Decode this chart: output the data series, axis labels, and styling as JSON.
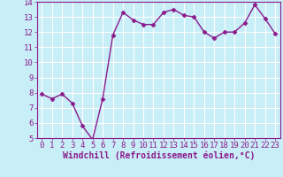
{
  "x": [
    0,
    1,
    2,
    3,
    4,
    5,
    6,
    7,
    8,
    9,
    10,
    11,
    12,
    13,
    14,
    15,
    16,
    17,
    18,
    19,
    20,
    21,
    22,
    23
  ],
  "y": [
    7.9,
    7.6,
    7.9,
    7.3,
    5.8,
    4.9,
    7.6,
    11.8,
    13.3,
    12.8,
    12.5,
    12.5,
    13.3,
    13.5,
    13.1,
    13.0,
    12.0,
    11.6,
    12.0,
    12.0,
    12.6,
    13.8,
    12.9,
    11.9
  ],
  "color": "#8b1a8b",
  "bg_color": "#c8eef8",
  "grid_color": "#ffffff",
  "xlabel": "Windchill (Refroidissement éolien,°C)",
  "ylim": [
    5,
    14
  ],
  "yticks": [
    5,
    6,
    7,
    8,
    9,
    10,
    11,
    12,
    13,
    14
  ],
  "xticks": [
    0,
    1,
    2,
    3,
    4,
    5,
    6,
    7,
    8,
    9,
    10,
    11,
    12,
    13,
    14,
    15,
    16,
    17,
    18,
    19,
    20,
    21,
    22,
    23
  ],
  "marker": "D",
  "markersize": 2.5,
  "linewidth": 1.0,
  "xlabel_fontsize": 7,
  "tick_fontsize": 6.5,
  "xlabel_color": "#8b1a8b",
  "tick_color": "#8b1a8b",
  "spine_color": "#8b1a8b"
}
